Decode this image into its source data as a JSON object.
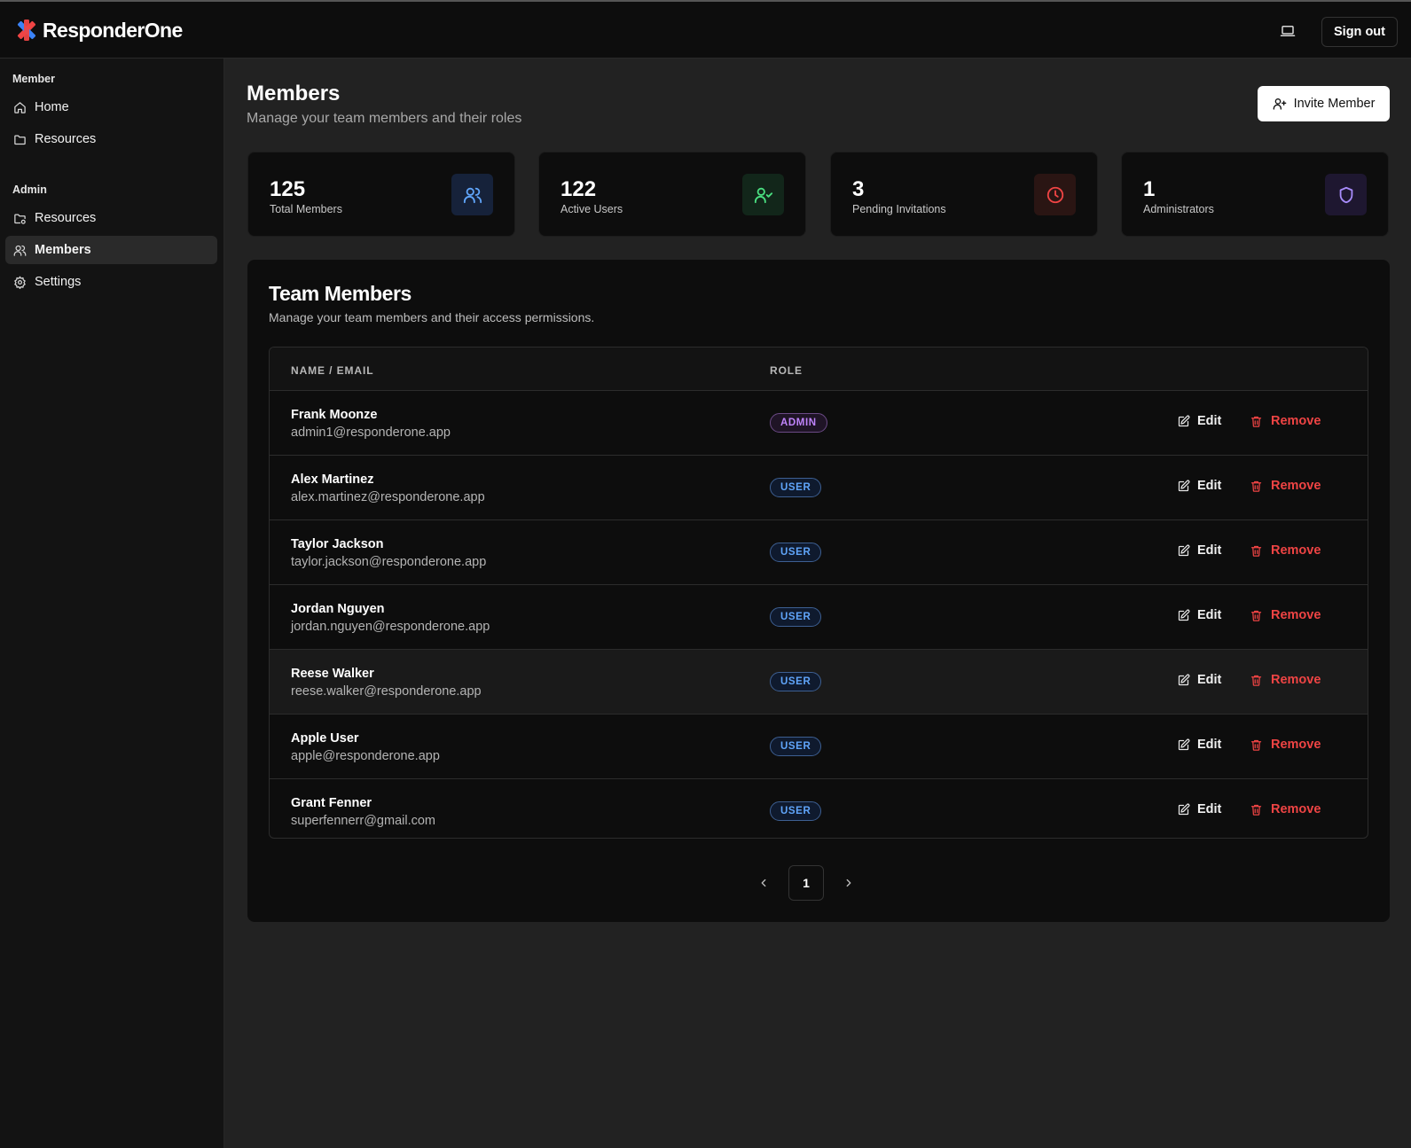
{
  "app": {
    "name": "ResponderOne"
  },
  "topbar": {
    "signout_label": "Sign out"
  },
  "sidebar": {
    "sections": [
      {
        "label": "Member",
        "items": [
          {
            "label": "Home",
            "icon": "home-icon"
          },
          {
            "label": "Resources",
            "icon": "folder-icon"
          }
        ]
      },
      {
        "label": "Admin",
        "items": [
          {
            "label": "Resources",
            "icon": "folder-settings-icon"
          },
          {
            "label": "Members",
            "icon": "users-icon",
            "active": true
          },
          {
            "label": "Settings",
            "icon": "gear-icon"
          }
        ]
      }
    ]
  },
  "header": {
    "title": "Members",
    "subtitle": "Manage your team members and their roles",
    "invite_label": "Invite Member"
  },
  "stats": [
    {
      "value": "125",
      "label": "Total Members",
      "icon": "users-icon",
      "color": "#60a5fa"
    },
    {
      "value": "122",
      "label": "Active Users",
      "icon": "user-check-icon",
      "color": "#4ade80"
    },
    {
      "value": "3",
      "label": "Pending Invitations",
      "icon": "clock-icon",
      "color": "#ef4444"
    },
    {
      "value": "1",
      "label": "Administrators",
      "icon": "shield-icon",
      "color": "#a78bfa"
    }
  ],
  "team": {
    "title": "Team Members",
    "subtitle": "Manage your team members and their access permissions.",
    "columns": [
      "NAME / EMAIL",
      "ROLE"
    ],
    "edit_label": "Edit",
    "remove_label": "Remove",
    "members": [
      {
        "name": "Frank Moonze",
        "email": "admin1@responderone.app",
        "role": "ADMIN"
      },
      {
        "name": "Alex Martinez",
        "email": "alex.martinez@responderone.app",
        "role": "USER"
      },
      {
        "name": "Taylor Jackson",
        "email": "taylor.jackson@responderone.app",
        "role": "USER"
      },
      {
        "name": "Jordan Nguyen",
        "email": "jordan.nguyen@responderone.app",
        "role": "USER"
      },
      {
        "name": "Reese Walker",
        "email": "reese.walker@responderone.app",
        "role": "USER"
      },
      {
        "name": "Apple User",
        "email": "apple@responderone.app",
        "role": "USER"
      },
      {
        "name": "Grant Fenner",
        "email": "superfennerr@gmail.com",
        "role": "USER"
      }
    ]
  },
  "pagination": {
    "current_page": "1"
  }
}
